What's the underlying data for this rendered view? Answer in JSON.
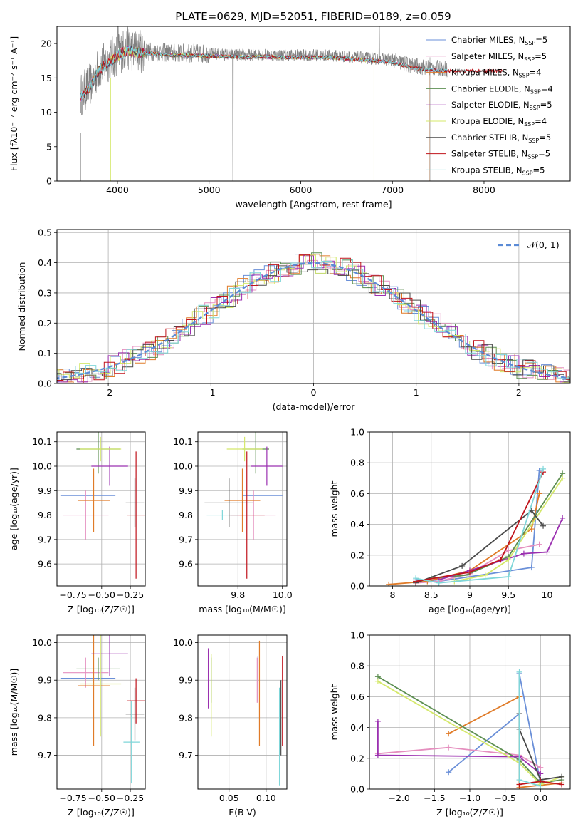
{
  "figure_title": "PLATE=0629, MJD=52051, FIBERID=0189, z=0.059",
  "model_colors": [
    "#6a8fd8",
    "#e58fbf",
    "#e07b28",
    "#5d8f52",
    "#9b30b0",
    "#d4e86a",
    "#4a4a4a",
    "#c0141c",
    "#7fd6d9"
  ],
  "chart_data": [
    {
      "id": "spectrum",
      "type": "line",
      "xlabel": "wavelength [Angstrom, rest frame]",
      "ylabel": "Flux [fλ10⁻¹⁷ erg cm⁻² s⁻¹ A⁻¹]",
      "xlim": [
        3340,
        8940
      ],
      "ylim": [
        0,
        22.5
      ],
      "xticks": [
        4000,
        5000,
        6000,
        7000,
        8000
      ],
      "yticks": [
        0,
        5,
        10,
        15,
        20
      ],
      "grid": false,
      "legend_position": "top-right",
      "observed_color": "#808080",
      "series": [
        {
          "name": "Chabrier MILES, N_SSP=5",
          "x": [
            3600,
            7600
          ],
          "y": [
            12,
            16
          ]
        },
        {
          "name": "Salpeter MILES, N_SSP=5",
          "x": [
            3600,
            7600
          ],
          "y": [
            12,
            16
          ]
        },
        {
          "name": "Kroupa MILES, N_SSP=4",
          "x": [
            3600,
            7400
          ],
          "y": [
            12.5,
            16
          ]
        },
        {
          "name": "Chabrier ELODIE, N_SSP=4",
          "x": [
            3900,
            6800
          ],
          "y": [
            16,
            18
          ]
        },
        {
          "name": "Salpeter ELODIE, N_SSP=5",
          "x": [
            3900,
            6800
          ],
          "y": [
            16,
            18
          ]
        },
        {
          "name": "Kroupa ELODIE, N_SSP=4",
          "x": [
            3900,
            6800
          ],
          "y": [
            16,
            18
          ]
        },
        {
          "name": "Chabrier STELIB, N_SSP=5",
          "x": [
            3600,
            8200
          ],
          "y": [
            12,
            16
          ]
        },
        {
          "name": "Salpeter STELIB, N_SSP=5",
          "x": [
            3600,
            8200
          ],
          "y": [
            12,
            16
          ]
        },
        {
          "name": "Kroupa STELIB, N_SSP=5",
          "x": [
            3600,
            7600
          ],
          "y": [
            12,
            16
          ]
        }
      ],
      "observed_envelope": {
        "x": [
          3600,
          3700,
          3800,
          3900,
          4000,
          4100,
          4200,
          4400,
          4600,
          4800,
          5000,
          5200,
          5400,
          5600,
          5800,
          6000,
          6200,
          6400,
          6600,
          6800,
          7000,
          7200,
          7400,
          7600
        ],
        "y": [
          12.5,
          14,
          16.5,
          17.5,
          18.5,
          19.3,
          19,
          18.8,
          18.6,
          18.6,
          18.5,
          18.4,
          18.3,
          18.4,
          18.3,
          18.3,
          18.3,
          18.2,
          18,
          17.8,
          17.6,
          16.8,
          16.5,
          16.3
        ]
      }
    },
    {
      "id": "residual_hist",
      "type": "bar",
      "xlabel": "(data-model)/error",
      "ylabel": "Normed distribution",
      "xlim": [
        -2.5,
        2.5
      ],
      "ylim": [
        0,
        0.51
      ],
      "xticks": [
        -2,
        -1,
        0,
        1,
        2
      ],
      "yticks": [
        0.0,
        0.1,
        0.2,
        0.3,
        0.4,
        0.5
      ],
      "grid": true,
      "legend_position": "top-right",
      "legend": "N(0,1)",
      "bin_width": 0.1
    },
    {
      "id": "age_vs_Z",
      "type": "scatter",
      "xlabel": "Z [log₁₀(Z/Z☉)]",
      "ylabel": "age  [log₁₀(age/yr)]",
      "xlim": [
        -0.89,
        -0.12
      ],
      "ylim": [
        9.51,
        10.14
      ],
      "xticks": [
        -0.75,
        -0.5,
        -0.25
      ],
      "xticklabels": [
        "−0.75",
        "−0.50",
        "−0.25"
      ],
      "yticks": [
        9.6,
        9.7,
        9.8,
        9.9,
        10.0,
        10.1
      ],
      "grid": true,
      "points": [
        {
          "x": -0.62,
          "y": 9.88,
          "xerr": 0.24,
          "yerr": 0.0
        },
        {
          "x": -0.64,
          "y": 9.8,
          "xerr": 0.2,
          "yerr": 0.1
        },
        {
          "x": -0.57,
          "y": 9.86,
          "xerr": 0.14,
          "yerr": 0.13
        },
        {
          "x": -0.53,
          "y": 10.07,
          "xerr": 0.19,
          "yerr": 0.1
        },
        {
          "x": -0.43,
          "y": 10.0,
          "xerr": 0.16,
          "yerr": 0.08
        },
        {
          "x": -0.51,
          "y": 10.07,
          "xerr": 0.18,
          "yerr": 0.05
        },
        {
          "x": -0.21,
          "y": 9.85,
          "xerr": 0.08,
          "yerr": 0.1
        },
        {
          "x": -0.2,
          "y": 9.8,
          "xerr": 0.08,
          "yerr": 0.26
        },
        {
          "x": -0.62,
          "y": 9.8,
          "xerr": 0.0,
          "yerr": 0.0
        }
      ]
    },
    {
      "id": "age_vs_mass",
      "type": "scatter",
      "xlabel": "mass [log₁₀(M/M☉)]",
      "xlim": [
        9.62,
        10.02
      ],
      "ylim": [
        9.51,
        10.14
      ],
      "xticks": [
        9.8,
        10.0
      ],
      "xticklabels": [
        "9.8",
        "10.0"
      ],
      "yticks": [
        9.6,
        9.7,
        9.8,
        9.9,
        10.0,
        10.1
      ],
      "grid": true,
      "points": [
        {
          "x": 9.91,
          "y": 9.88,
          "xerr": 0.09,
          "yerr": 0.0
        },
        {
          "x": 9.87,
          "y": 9.8,
          "xerr": 0.1,
          "yerr": 0.1
        },
        {
          "x": 9.82,
          "y": 9.86,
          "xerr": 0.08,
          "yerr": 0.13
        },
        {
          "x": 9.88,
          "y": 10.07,
          "xerr": 0.06,
          "yerr": 0.1
        },
        {
          "x": 9.93,
          "y": 10.0,
          "xerr": 0.07,
          "yerr": 0.08
        },
        {
          "x": 9.83,
          "y": 10.07,
          "xerr": 0.08,
          "yerr": 0.05
        },
        {
          "x": 9.76,
          "y": 9.85,
          "xerr": 0.11,
          "yerr": 0.1
        },
        {
          "x": 9.84,
          "y": 9.8,
          "xerr": 0.08,
          "yerr": 0.26
        },
        {
          "x": 9.73,
          "y": 9.8,
          "xerr": 0.07,
          "yerr": 0.02
        }
      ]
    },
    {
      "id": "massweight_vs_age",
      "type": "line",
      "xlabel": "age  [log₁₀(age/yr)]",
      "ylabel": "mass weight",
      "xlim": [
        7.7,
        10.3
      ],
      "ylim": [
        0,
        1
      ],
      "xticks": [
        8.0,
        8.5,
        9.0,
        9.5,
        10.0
      ],
      "yticks": [
        0.0,
        0.2,
        0.4,
        0.6,
        0.8,
        1.0
      ],
      "grid": true,
      "series": [
        {
          "x": [
            8.3,
            8.6,
            9.0,
            9.8,
            9.9
          ],
          "y": [
            0.04,
            0.03,
            0.06,
            0.12,
            0.75
          ]
        },
        {
          "x": [
            8.3,
            8.6,
            9.0,
            9.5,
            9.9
          ],
          "y": [
            0.02,
            0.03,
            0.08,
            0.23,
            0.27
          ]
        },
        {
          "x": [
            7.95,
            8.45,
            9.0,
            9.8,
            9.9
          ],
          "y": [
            0.01,
            0.03,
            0.1,
            0.37,
            0.6
          ]
        },
        {
          "x": [
            8.5,
            8.95,
            9.5,
            10.2
          ],
          "y": [
            0.05,
            0.07,
            0.19,
            0.73
          ]
        },
        {
          "x": [
            8.6,
            9.0,
            9.7,
            10.0,
            10.2
          ],
          "y": [
            0.04,
            0.1,
            0.21,
            0.22,
            0.44
          ]
        },
        {
          "x": [
            8.8,
            9.2,
            9.5,
            10.2
          ],
          "y": [
            0.03,
            0.07,
            0.17,
            0.7
          ]
        },
        {
          "x": [
            8.3,
            8.9,
            9.8,
            9.95
          ],
          "y": [
            0.02,
            0.13,
            0.49,
            0.39
          ]
        },
        {
          "x": [
            8.3,
            9.0,
            9.4,
            9.95
          ],
          "y": [
            0.03,
            0.09,
            0.17,
            0.74
          ]
        },
        {
          "x": [
            8.3,
            8.6,
            9.5,
            9.95
          ],
          "y": [
            0.05,
            0.02,
            0.06,
            0.76
          ]
        }
      ]
    },
    {
      "id": "mass_vs_Z",
      "type": "scatter",
      "xlabel": "Z [log₁₀(Z/Z☉)]",
      "ylabel": "mass [log₁₀(M/M☉)]",
      "xlim": [
        -0.89,
        -0.12
      ],
      "ylim": [
        9.61,
        10.02
      ],
      "xticks": [
        -0.75,
        -0.5,
        -0.25
      ],
      "xticklabels": [
        "−0.75",
        "−0.50",
        "−0.25"
      ],
      "yticks": [
        9.7,
        9.8,
        9.9,
        10.0
      ],
      "grid": true,
      "points": [
        {
          "x": -0.62,
          "y": 9.905,
          "xerr": 0.24,
          "yerr": 0.0
        },
        {
          "x": -0.64,
          "y": 9.92,
          "xerr": 0.2,
          "yerr": 0.04
        },
        {
          "x": -0.57,
          "y": 9.885,
          "xerr": 0.14,
          "yerr": 0.16
        },
        {
          "x": -0.53,
          "y": 9.93,
          "xerr": 0.19,
          "yerr": 0.03
        },
        {
          "x": -0.43,
          "y": 9.97,
          "xerr": 0.16,
          "yerr": 0.06
        },
        {
          "x": -0.51,
          "y": 9.89,
          "xerr": 0.18,
          "yerr": 0.14
        },
        {
          "x": -0.21,
          "y": 9.81,
          "xerr": 0.08,
          "yerr": 0.07
        },
        {
          "x": -0.2,
          "y": 9.845,
          "xerr": 0.08,
          "yerr": 0.06
        },
        {
          "x": -0.24,
          "y": 9.735,
          "xerr": 0.07,
          "yerr": 0.11
        }
      ]
    },
    {
      "id": "mass_vs_ebv",
      "type": "scatter",
      "xlabel": "E(B-V)",
      "xlim": [
        0.008,
        0.128
      ],
      "ylim": [
        9.61,
        10.02
      ],
      "xticks": [
        0.05,
        0.1
      ],
      "xticklabels": [
        "0.05",
        "0.10"
      ],
      "yticks": [
        9.7,
        9.8,
        9.9,
        10.0
      ],
      "grid": true,
      "points": [
        {
          "x": 0.089,
          "y": 9.905,
          "xerr": 0,
          "yerr": 0.06
        },
        {
          "x": 0.088,
          "y": 9.9,
          "xerr": 0,
          "yerr": 0.06
        },
        {
          "x": 0.091,
          "y": 9.865,
          "xerr": 0,
          "yerr": 0.14
        },
        {
          "x": 0.026,
          "y": 9.9,
          "xerr": 0,
          "yerr": 0.06
        },
        {
          "x": 0.022,
          "y": 9.905,
          "xerr": 0,
          "yerr": 0.08
        },
        {
          "x": 0.026,
          "y": 9.86,
          "xerr": 0,
          "yerr": 0.11
        },
        {
          "x": 0.12,
          "y": 9.8,
          "xerr": 0,
          "yerr": 0.1
        },
        {
          "x": 0.122,
          "y": 9.845,
          "xerr": 0,
          "yerr": 0.12
        },
        {
          "x": 0.118,
          "y": 9.75,
          "xerr": 0,
          "yerr": 0.13
        }
      ]
    },
    {
      "id": "massweight_vs_Z",
      "type": "line",
      "xlabel": "Z [log₁₀(Z/Z☉)]",
      "ylabel": "mass weight",
      "xlim": [
        -2.42,
        0.42
      ],
      "ylim": [
        0,
        1
      ],
      "xticks": [
        -2.0,
        -1.5,
        -1.0,
        -0.5,
        0.0
      ],
      "xticklabels": [
        "−2.0",
        "−1.5",
        "−1.0",
        "−0.5",
        "0.0"
      ],
      "yticks": [
        0.0,
        0.2,
        0.4,
        0.6,
        0.8,
        1.0
      ],
      "grid": true,
      "series": [
        {
          "x": [
            -1.3,
            -0.3,
            -0.3,
            0.0
          ],
          "y": [
            0.11,
            0.49,
            0.75,
            0.04
          ]
        },
        {
          "x": [
            -2.3,
            -1.3,
            -0.3,
            0.0
          ],
          "y": [
            0.23,
            0.27,
            0.22,
            0.14
          ]
        },
        {
          "x": [
            -1.3,
            -0.3,
            -0.3,
            0.3
          ],
          "y": [
            0.36,
            0.6,
            0.01,
            0.04
          ]
        },
        {
          "x": [
            -2.3,
            -0.3,
            0.0,
            0.3
          ],
          "y": [
            0.73,
            0.19,
            0.04,
            0.06
          ]
        },
        {
          "x": [
            -2.3,
            -2.3,
            -0.3,
            0.0
          ],
          "y": [
            0.44,
            0.22,
            0.21,
            0.1
          ]
        },
        {
          "x": [
            -2.3,
            -0.3,
            0.0,
            0.3
          ],
          "y": [
            0.7,
            0.17,
            0.03,
            0.08
          ]
        },
        {
          "x": [
            -0.3,
            -0.3,
            0.0,
            0.3
          ],
          "y": [
            0.49,
            0.39,
            0.06,
            0.08
          ]
        },
        {
          "x": [
            -0.3,
            0.0,
            0.3
          ],
          "y": [
            0.03,
            0.05,
            0.03
          ]
        },
        {
          "x": [
            -0.3,
            -0.3,
            0.0
          ],
          "y": [
            0.76,
            0.06,
            0.02
          ]
        }
      ]
    }
  ]
}
